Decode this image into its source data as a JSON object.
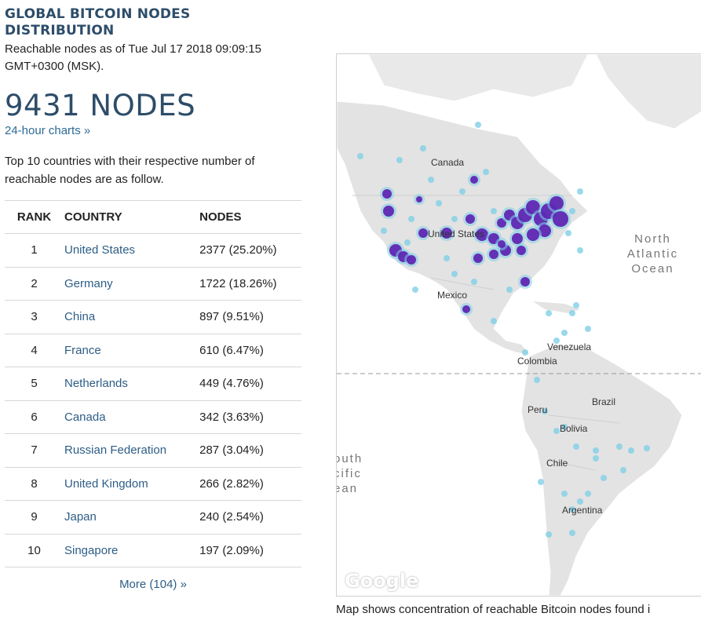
{
  "header": {
    "title": "GLOBAL BITCOIN NODES DISTRIBUTION",
    "subtitle": "Reachable nodes as of Tue Jul 17 2018 09:09:15 GMT+0300 (MSK).",
    "node_count": "9431 NODES",
    "charts_link": "24-hour charts »"
  },
  "intro": "Top 10 countries with their respective number of reachable nodes are as follow.",
  "table": {
    "columns": [
      "RANK",
      "COUNTRY",
      "NODES"
    ],
    "rows": [
      {
        "rank": "1",
        "country": "United States",
        "nodes": "2377 (25.20%)"
      },
      {
        "rank": "2",
        "country": "Germany",
        "nodes": "1722 (18.26%)"
      },
      {
        "rank": "3",
        "country": "China",
        "nodes": "897 (9.51%)"
      },
      {
        "rank": "4",
        "country": "France",
        "nodes": "610 (6.47%)"
      },
      {
        "rank": "5",
        "country": "Netherlands",
        "nodes": "449 (4.76%)"
      },
      {
        "rank": "6",
        "country": "Canada",
        "nodes": "342 (3.63%)"
      },
      {
        "rank": "7",
        "country": "Russian Federation",
        "nodes": "287 (3.04%)"
      },
      {
        "rank": "8",
        "country": "United Kingdom",
        "nodes": "266 (2.82%)"
      },
      {
        "rank": "9",
        "country": "Japan",
        "nodes": "240 (2.54%)"
      },
      {
        "rank": "10",
        "country": "Singapore",
        "nodes": "197 (2.09%)"
      }
    ]
  },
  "more_link": "More (104) »",
  "map": {
    "labels": {
      "canada": "Canada",
      "united_states": "United States",
      "mexico": "Mexico",
      "venezuela": "Venezuela",
      "colombia": "Colombia",
      "peru": "Peru",
      "brazil": "Brazil",
      "bolivia": "Bolivia",
      "chile": "Chile",
      "argentina": "Argentina",
      "north_atlantic": "North Atlantic Ocean",
      "south_pacific": "outh cific ean"
    },
    "provider": "Google"
  },
  "caption": "Map shows concentration of reachable Bitcoin nodes found i",
  "colors": {
    "heading": "#2d4d69",
    "link": "#2d5d86",
    "node_dense": "#5b1eb0",
    "node_sparse": "#7fd0e6",
    "land": "#e6e6e6"
  }
}
